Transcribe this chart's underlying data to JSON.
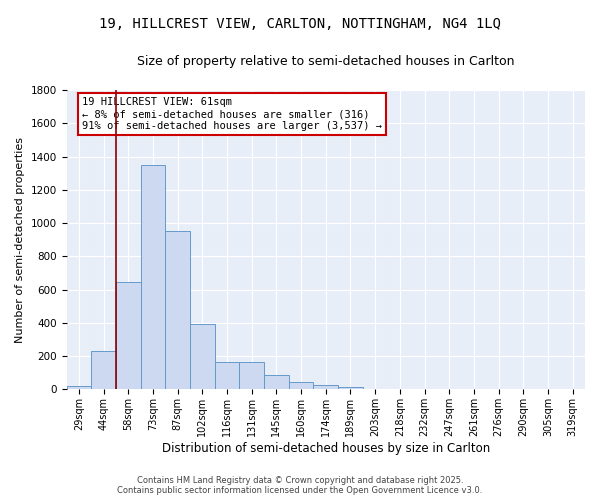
{
  "title": "19, HILLCREST VIEW, CARLTON, NOTTINGHAM, NG4 1LQ",
  "subtitle": "Size of property relative to semi-detached houses in Carlton",
  "xlabel": "Distribution of semi-detached houses by size in Carlton",
  "ylabel": "Number of semi-detached properties",
  "bins": [
    "29sqm",
    "44sqm",
    "58sqm",
    "73sqm",
    "87sqm",
    "102sqm",
    "116sqm",
    "131sqm",
    "145sqm",
    "160sqm",
    "174sqm",
    "189sqm",
    "203sqm",
    "218sqm",
    "232sqm",
    "247sqm",
    "261sqm",
    "276sqm",
    "290sqm",
    "305sqm",
    "319sqm"
  ],
  "values": [
    20,
    230,
    648,
    1348,
    950,
    393,
    163,
    163,
    87,
    43,
    25,
    15,
    5,
    2,
    1,
    0,
    0,
    0,
    0,
    0,
    0
  ],
  "bar_color": "#ccd9f0",
  "bar_edge_color": "#6699cc",
  "vline_x_pos": 1.5,
  "vline_color": "#8b0000",
  "annotation_title": "19 HILLCREST VIEW: 61sqm",
  "annotation_line1": "← 8% of semi-detached houses are smaller (316)",
  "annotation_line2": "91% of semi-detached houses are larger (3,537) →",
  "annotation_box_color": "white",
  "annotation_box_edge": "#cc0000",
  "ylim": [
    0,
    1800
  ],
  "yticks": [
    0,
    200,
    400,
    600,
    800,
    1000,
    1200,
    1400,
    1600,
    1800
  ],
  "footer_line1": "Contains HM Land Registry data © Crown copyright and database right 2025.",
  "footer_line2": "Contains public sector information licensed under the Open Government Licence v3.0.",
  "bg_color": "#e8eef8",
  "title_fontsize": 10,
  "subtitle_fontsize": 9,
  "xlabel_fontsize": 8.5,
  "ylabel_fontsize": 8,
  "tick_fontsize": 7,
  "footer_fontsize": 6,
  "annotation_fontsize": 7.5
}
